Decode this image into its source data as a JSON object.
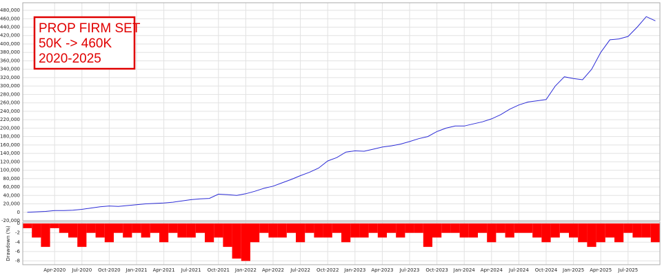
{
  "chart_data": [
    {
      "type": "line",
      "annotations": [
        "PROP FIRM SET",
        "50K -> 460K",
        "2020-2025"
      ],
      "color": "#2b2bd6",
      "grid": true,
      "ylim": [
        -20000,
        498000
      ],
      "yticks": [
        {
          "value": -20000,
          "label": "-20,000"
        },
        0,
        {
          "value": 20000,
          "label": "20,000"
        },
        {
          "value": 40000,
          "label": "40,000"
        },
        {
          "value": 60000,
          "label": "60,000"
        },
        {
          "value": 80000,
          "label": "80,000"
        },
        {
          "value": 100000,
          "label": "100,000"
        },
        {
          "value": 120000,
          "label": "120,000"
        },
        {
          "value": 140000,
          "label": "140,000"
        },
        {
          "value": 160000,
          "label": "160,000"
        },
        {
          "value": 180000,
          "label": "180,000"
        },
        {
          "value": 200000,
          "label": "200,000"
        },
        {
          "value": 220000,
          "label": "220,000"
        },
        {
          "value": 240000,
          "label": "240,000"
        },
        {
          "value": 260000,
          "label": "260,000"
        },
        {
          "value": 280000,
          "label": "280,000"
        },
        {
          "value": 300000,
          "label": "300,000"
        },
        {
          "value": 320000,
          "label": "320,000"
        },
        {
          "value": 340000,
          "label": "340,000"
        },
        {
          "value": 360000,
          "label": "360,000"
        },
        {
          "value": 380000,
          "label": "380,000"
        },
        {
          "value": 400000,
          "label": "400,000"
        },
        {
          "value": 420000,
          "label": "420,000"
        },
        {
          "value": 440000,
          "label": "440,000"
        },
        {
          "value": 460000,
          "label": "460,000"
        },
        {
          "value": 480000,
          "label": "480,000"
        }
      ],
      "values": [
        0,
        1000,
        2000,
        4000,
        4000,
        5000,
        7000,
        10000,
        13000,
        15000,
        14000,
        16000,
        18000,
        20000,
        21000,
        22000,
        24000,
        27000,
        30000,
        32000,
        33000,
        43000,
        42000,
        40000,
        44000,
        50000,
        57000,
        62000,
        70000,
        78000,
        87000,
        95000,
        105000,
        122000,
        130000,
        143000,
        146000,
        145000,
        150000,
        155000,
        158000,
        162000,
        168000,
        175000,
        180000,
        192000,
        200000,
        205000,
        205000,
        210000,
        215000,
        222000,
        232000,
        245000,
        255000,
        262000,
        265000,
        268000,
        300000,
        322000,
        318000,
        315000,
        340000,
        380000,
        410000,
        412000,
        418000,
        440000,
        465000,
        455000
      ]
    },
    {
      "type": "bar",
      "ylabel": "Drawdown (%)",
      "color": "#ff0000",
      "grid": true,
      "ylim": [
        -8.8,
        0.3
      ],
      "yticks": [
        0,
        -2,
        -4,
        -6,
        -8
      ],
      "categories": [
        null,
        null,
        null,
        "Apr-2020",
        null,
        null,
        "Jul-2020",
        null,
        null,
        "Oct-2020",
        null,
        null,
        "Jan-2021",
        null,
        null,
        "Apr-2021",
        null,
        null,
        "Jul-2021",
        null,
        null,
        "Oct-2021",
        null,
        null,
        "Jan-2022",
        null,
        null,
        "Apr-2022",
        null,
        null,
        "Jul-2022",
        null,
        null,
        "Oct-2022",
        null,
        null,
        "Jan-2023",
        null,
        null,
        "Apr-2023",
        null,
        null,
        "Jul-2023",
        null,
        null,
        "Oct-2023",
        null,
        null,
        "Jan-2024",
        null,
        null,
        "Apr-2024",
        null,
        null,
        "Jul-2024",
        null,
        null,
        "Oct-2024",
        null,
        null,
        "Jan-2025",
        null,
        null,
        "Apr-2025",
        null,
        null,
        "Jul-2025",
        null,
        null,
        null
      ],
      "values": [
        -1,
        -3,
        -5,
        -1,
        -2,
        -3,
        -5,
        -2,
        -3,
        -4,
        -2,
        -3,
        -2,
        -3,
        -2,
        -4,
        -2,
        -3,
        -3,
        -2,
        -4,
        -3,
        -5,
        -7.5,
        -8,
        -4,
        -2,
        -3,
        -3,
        -2,
        -4,
        -2,
        -3,
        -3,
        -2,
        -4,
        -3,
        -3,
        -2,
        -3,
        -2,
        -3,
        -2,
        -2,
        -5,
        -3,
        -2,
        -2,
        -3,
        -3,
        -2,
        -4,
        -2,
        -3,
        -2,
        -2,
        -3,
        -4,
        -3,
        -2,
        -3,
        -4,
        -5,
        -4,
        -3,
        -4,
        -2,
        -3,
        -3,
        -4
      ]
    }
  ]
}
